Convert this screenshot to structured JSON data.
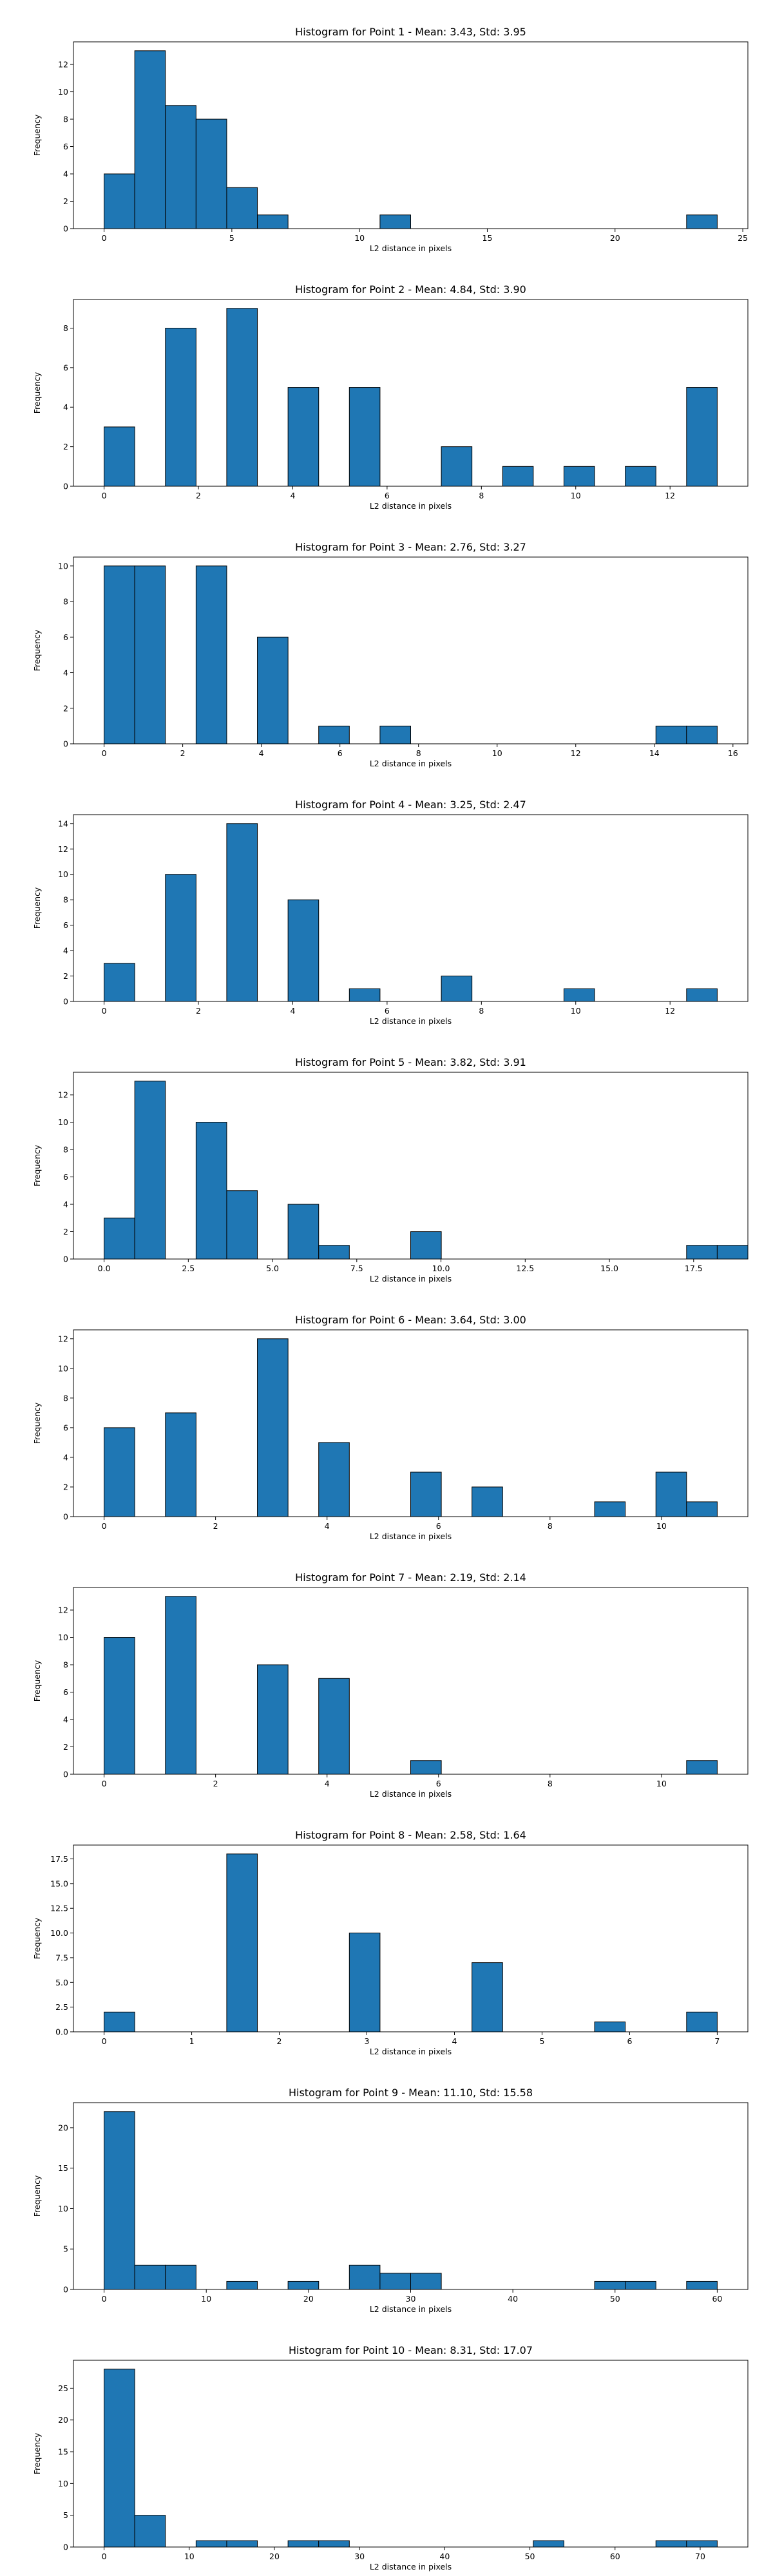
{
  "chart_data": [
    {
      "type": "bar",
      "title": "Histogram for Point 1 - Mean: 3.43, Std: 3.95",
      "xlabel": "L2 distance in pixels",
      "ylabel": "Frequency",
      "xlim": [
        -1.2,
        25.2
      ],
      "ylim": [
        0,
        13.65
      ],
      "xticks": [
        0,
        5,
        10,
        15,
        20,
        25
      ],
      "xtick_labels": [
        "0",
        "5",
        "10",
        "15",
        "20",
        "25"
      ],
      "yticks": [
        0,
        2,
        4,
        6,
        8,
        10,
        12
      ],
      "ytick_labels": [
        "0",
        "2",
        "4",
        "6",
        "8",
        "10",
        "12"
      ],
      "bins": [
        {
          "x0": 0.0,
          "x1": 1.2,
          "count": 4
        },
        {
          "x0": 1.2,
          "x1": 2.4,
          "count": 13
        },
        {
          "x0": 2.4,
          "x1": 3.6,
          "count": 9
        },
        {
          "x0": 3.6,
          "x1": 4.8,
          "count": 8
        },
        {
          "x0": 4.8,
          "x1": 6.0,
          "count": 3
        },
        {
          "x0": 6.0,
          "x1": 7.2,
          "count": 1
        },
        {
          "x0": 10.8,
          "x1": 12.0,
          "count": 1
        },
        {
          "x0": 22.8,
          "x1": 24.0,
          "count": 1
        }
      ]
    },
    {
      "type": "bar",
      "title": "Histogram for Point 2 - Mean: 4.84, Std: 3.90",
      "xlabel": "L2 distance in pixels",
      "ylabel": "Frequency",
      "xlim": [
        -0.65,
        13.65
      ],
      "ylim": [
        0,
        9.45
      ],
      "xticks": [
        0,
        2,
        4,
        6,
        8,
        10,
        12
      ],
      "xtick_labels": [
        "0",
        "2",
        "4",
        "6",
        "8",
        "10",
        "12"
      ],
      "yticks": [
        0,
        2,
        4,
        6,
        8
      ],
      "ytick_labels": [
        "0",
        "2",
        "4",
        "6",
        "8"
      ],
      "bins": [
        {
          "x0": 0.0,
          "x1": 0.65,
          "count": 3
        },
        {
          "x0": 1.3,
          "x1": 1.95,
          "count": 8
        },
        {
          "x0": 2.6,
          "x1": 3.25,
          "count": 9
        },
        {
          "x0": 3.9,
          "x1": 4.55,
          "count": 5
        },
        {
          "x0": 5.2,
          "x1": 5.85,
          "count": 5
        },
        {
          "x0": 7.15,
          "x1": 7.8,
          "count": 2
        },
        {
          "x0": 8.45,
          "x1": 9.1,
          "count": 1
        },
        {
          "x0": 9.75,
          "x1": 10.4,
          "count": 1
        },
        {
          "x0": 11.05,
          "x1": 11.7,
          "count": 1
        },
        {
          "x0": 12.35,
          "x1": 13.0,
          "count": 5
        }
      ]
    },
    {
      "type": "bar",
      "title": "Histogram for Point 3 - Mean: 2.76, Std: 3.27",
      "xlabel": "L2 distance in pixels",
      "ylabel": "Frequency",
      "xlim": [
        -0.78,
        16.38
      ],
      "ylim": [
        0,
        10.5
      ],
      "xticks": [
        0,
        2,
        4,
        6,
        8,
        10,
        12,
        14,
        16
      ],
      "xtick_labels": [
        "0",
        "2",
        "4",
        "6",
        "8",
        "10",
        "12",
        "14",
        "16"
      ],
      "yticks": [
        0,
        2,
        4,
        6,
        8,
        10
      ],
      "ytick_labels": [
        "0",
        "2",
        "4",
        "6",
        "8",
        "10"
      ],
      "bins": [
        {
          "x0": 0.0,
          "x1": 0.78,
          "count": 10
        },
        {
          "x0": 0.78,
          "x1": 1.56,
          "count": 10
        },
        {
          "x0": 2.34,
          "x1": 3.12,
          "count": 10
        },
        {
          "x0": 3.9,
          "x1": 4.68,
          "count": 6
        },
        {
          "x0": 5.46,
          "x1": 6.24,
          "count": 1
        },
        {
          "x0": 7.02,
          "x1": 7.8,
          "count": 1
        },
        {
          "x0": 14.04,
          "x1": 14.82,
          "count": 1
        },
        {
          "x0": 14.82,
          "x1": 15.6,
          "count": 1
        }
      ]
    },
    {
      "type": "bar",
      "title": "Histogram for Point 4 - Mean: 3.25, Std: 2.47",
      "xlabel": "L2 distance in pixels",
      "ylabel": "Frequency",
      "xlim": [
        -0.65,
        13.65
      ],
      "ylim": [
        0,
        14.7
      ],
      "xticks": [
        0,
        2,
        4,
        6,
        8,
        10,
        12
      ],
      "xtick_labels": [
        "0",
        "2",
        "4",
        "6",
        "8",
        "10",
        "12"
      ],
      "yticks": [
        0,
        2,
        4,
        6,
        8,
        10,
        12,
        14
      ],
      "ytick_labels": [
        "0",
        "2",
        "4",
        "6",
        "8",
        "10",
        "12",
        "14"
      ],
      "bins": [
        {
          "x0": 0.0,
          "x1": 0.65,
          "count": 3
        },
        {
          "x0": 1.3,
          "x1": 1.95,
          "count": 10
        },
        {
          "x0": 2.6,
          "x1": 3.25,
          "count": 14
        },
        {
          "x0": 3.9,
          "x1": 4.55,
          "count": 8
        },
        {
          "x0": 5.2,
          "x1": 5.85,
          "count": 1
        },
        {
          "x0": 7.15,
          "x1": 7.8,
          "count": 2
        },
        {
          "x0": 9.75,
          "x1": 10.4,
          "count": 1
        },
        {
          "x0": 12.35,
          "x1": 13.0,
          "count": 1
        }
      ]
    },
    {
      "type": "bar",
      "title": "Histogram for Point 5 - Mean: 3.82, Std: 3.91",
      "xlabel": "L2 distance in pixels",
      "ylabel": "Frequency",
      "xlim": [
        -0.91,
        19.11
      ],
      "ylim": [
        0,
        13.65
      ],
      "xticks": [
        0,
        2.5,
        5,
        7.5,
        10,
        12.5,
        15,
        17.5
      ],
      "xtick_labels": [
        "0.0",
        "2.5",
        "5.0",
        "7.5",
        "10.0",
        "12.5",
        "15.0",
        "17.5"
      ],
      "yticks": [
        0,
        2,
        4,
        6,
        8,
        10,
        12
      ],
      "ytick_labels": [
        "0",
        "2",
        "4",
        "6",
        "8",
        "10",
        "12"
      ],
      "bins": [
        {
          "x0": 0.0,
          "x1": 0.91,
          "count": 3
        },
        {
          "x0": 0.91,
          "x1": 1.82,
          "count": 13
        },
        {
          "x0": 2.73,
          "x1": 3.64,
          "count": 10
        },
        {
          "x0": 3.64,
          "x1": 4.55,
          "count": 5
        },
        {
          "x0": 5.46,
          "x1": 6.37,
          "count": 4
        },
        {
          "x0": 6.37,
          "x1": 7.28,
          "count": 1
        },
        {
          "x0": 9.1,
          "x1": 10.01,
          "count": 2
        },
        {
          "x0": 17.29,
          "x1": 18.2,
          "count": 1
        },
        {
          "x0": 18.2,
          "x1": 19.11,
          "count": 1
        }
      ]
    },
    {
      "type": "bar",
      "title": "Histogram for Point 6 - Mean: 3.64, Std: 3.00",
      "xlabel": "L2 distance in pixels",
      "ylabel": "Frequency",
      "xlim": [
        -0.55,
        11.55
      ],
      "ylim": [
        0,
        12.6
      ],
      "xticks": [
        0,
        2,
        4,
        6,
        8,
        10
      ],
      "xtick_labels": [
        "0",
        "2",
        "4",
        "6",
        "8",
        "10"
      ],
      "yticks": [
        0,
        2,
        4,
        6,
        8,
        10,
        12
      ],
      "ytick_labels": [
        "0",
        "2",
        "4",
        "6",
        "8",
        "10",
        "12"
      ],
      "bins": [
        {
          "x0": 0.0,
          "x1": 0.55,
          "count": 6
        },
        {
          "x0": 1.1,
          "x1": 1.65,
          "count": 7
        },
        {
          "x0": 2.75,
          "x1": 3.3,
          "count": 12
        },
        {
          "x0": 3.85,
          "x1": 4.4,
          "count": 5
        },
        {
          "x0": 5.5,
          "x1": 6.05,
          "count": 3
        },
        {
          "x0": 6.6,
          "x1": 7.15,
          "count": 2
        },
        {
          "x0": 8.8,
          "x1": 9.35,
          "count": 1
        },
        {
          "x0": 9.9,
          "x1": 10.45,
          "count": 3
        },
        {
          "x0": 10.45,
          "x1": 11.0,
          "count": 1
        }
      ]
    },
    {
      "type": "bar",
      "title": "Histogram for Point 7 - Mean: 2.19, Std: 2.14",
      "xlabel": "L2 distance in pixels",
      "ylabel": "Frequency",
      "xlim": [
        -0.55,
        11.55
      ],
      "ylim": [
        0,
        13.65
      ],
      "xticks": [
        0,
        2,
        4,
        6,
        8,
        10
      ],
      "xtick_labels": [
        "0",
        "2",
        "4",
        "6",
        "8",
        "10"
      ],
      "yticks": [
        0,
        2,
        4,
        6,
        8,
        10,
        12
      ],
      "ytick_labels": [
        "0",
        "2",
        "4",
        "6",
        "8",
        "10",
        "12"
      ],
      "bins": [
        {
          "x0": 0.0,
          "x1": 0.55,
          "count": 10
        },
        {
          "x0": 1.1,
          "x1": 1.65,
          "count": 13
        },
        {
          "x0": 2.75,
          "x1": 3.3,
          "count": 8
        },
        {
          "x0": 3.85,
          "x1": 4.4,
          "count": 7
        },
        {
          "x0": 5.5,
          "x1": 6.05,
          "count": 1
        },
        {
          "x0": 10.45,
          "x1": 11.0,
          "count": 1
        }
      ]
    },
    {
      "type": "bar",
      "title": "Histogram for Point 8 - Mean: 2.58, Std: 1.64",
      "xlabel": "L2 distance in pixels",
      "ylabel": "Frequency",
      "xlim": [
        -0.35,
        7.35
      ],
      "ylim": [
        0,
        18.9
      ],
      "xticks": [
        0,
        1,
        2,
        3,
        4,
        5,
        6,
        7
      ],
      "xtick_labels": [
        "0",
        "1",
        "2",
        "3",
        "4",
        "5",
        "6",
        "7"
      ],
      "yticks": [
        0,
        2.5,
        5,
        7.5,
        10,
        12.5,
        15,
        17.5
      ],
      "ytick_labels": [
        "0.0",
        "2.5",
        "5.0",
        "7.5",
        "10.0",
        "12.5",
        "15.0",
        "17.5"
      ],
      "bins": [
        {
          "x0": 0.0,
          "x1": 0.35,
          "count": 2
        },
        {
          "x0": 1.4,
          "x1": 1.75,
          "count": 18
        },
        {
          "x0": 2.8,
          "x1": 3.15,
          "count": 10
        },
        {
          "x0": 4.2,
          "x1": 4.55,
          "count": 7
        },
        {
          "x0": 5.6,
          "x1": 5.95,
          "count": 1
        },
        {
          "x0": 6.65,
          "x1": 7.0,
          "count": 2
        }
      ]
    },
    {
      "type": "bar",
      "title": "Histogram for Point 9 - Mean: 11.10, Std: 15.58",
      "xlabel": "L2 distance in pixels",
      "ylabel": "Frequency",
      "xlim": [
        -3.0,
        63.0
      ],
      "ylim": [
        0,
        23.1
      ],
      "xticks": [
        0,
        10,
        20,
        30,
        40,
        50,
        60
      ],
      "xtick_labels": [
        "0",
        "10",
        "20",
        "30",
        "40",
        "50",
        "60"
      ],
      "yticks": [
        0,
        5,
        10,
        15,
        20
      ],
      "ytick_labels": [
        "0",
        "5",
        "10",
        "15",
        "20"
      ],
      "bins": [
        {
          "x0": 0.0,
          "x1": 3.0,
          "count": 22
        },
        {
          "x0": 3.0,
          "x1": 6.0,
          "count": 3
        },
        {
          "x0": 6.0,
          "x1": 9.0,
          "count": 3
        },
        {
          "x0": 12.0,
          "x1": 15.0,
          "count": 1
        },
        {
          "x0": 18.0,
          "x1": 21.0,
          "count": 1
        },
        {
          "x0": 24.0,
          "x1": 27.0,
          "count": 3
        },
        {
          "x0": 27.0,
          "x1": 30.0,
          "count": 2
        },
        {
          "x0": 30.0,
          "x1": 33.0,
          "count": 2
        },
        {
          "x0": 48.0,
          "x1": 51.0,
          "count": 1
        },
        {
          "x0": 51.0,
          "x1": 54.0,
          "count": 1
        },
        {
          "x0": 57.0,
          "x1": 60.0,
          "count": 1
        }
      ]
    },
    {
      "type": "bar",
      "title": "Histogram for Point 10 - Mean: 8.31, Std: 17.07",
      "xlabel": "L2 distance in pixels",
      "ylabel": "Frequency",
      "xlim": [
        -3.6,
        75.6
      ],
      "ylim": [
        0,
        29.4
      ],
      "xticks": [
        0,
        10,
        20,
        30,
        40,
        50,
        60,
        70
      ],
      "xtick_labels": [
        "0",
        "10",
        "20",
        "30",
        "40",
        "50",
        "60",
        "70"
      ],
      "yticks": [
        0,
        5,
        10,
        15,
        20,
        25
      ],
      "ytick_labels": [
        "0",
        "5",
        "10",
        "15",
        "20",
        "25"
      ],
      "bins": [
        {
          "x0": 0.0,
          "x1": 3.6,
          "count": 28
        },
        {
          "x0": 3.6,
          "x1": 7.2,
          "count": 5
        },
        {
          "x0": 10.8,
          "x1": 14.4,
          "count": 1
        },
        {
          "x0": 14.4,
          "x1": 18.0,
          "count": 1
        },
        {
          "x0": 21.6,
          "x1": 25.2,
          "count": 1
        },
        {
          "x0": 25.2,
          "x1": 28.8,
          "count": 1
        },
        {
          "x0": 50.4,
          "x1": 54.0,
          "count": 1
        },
        {
          "x0": 64.8,
          "x1": 68.4,
          "count": 1
        },
        {
          "x0": 68.4,
          "x1": 72.0,
          "count": 1
        }
      ]
    }
  ]
}
